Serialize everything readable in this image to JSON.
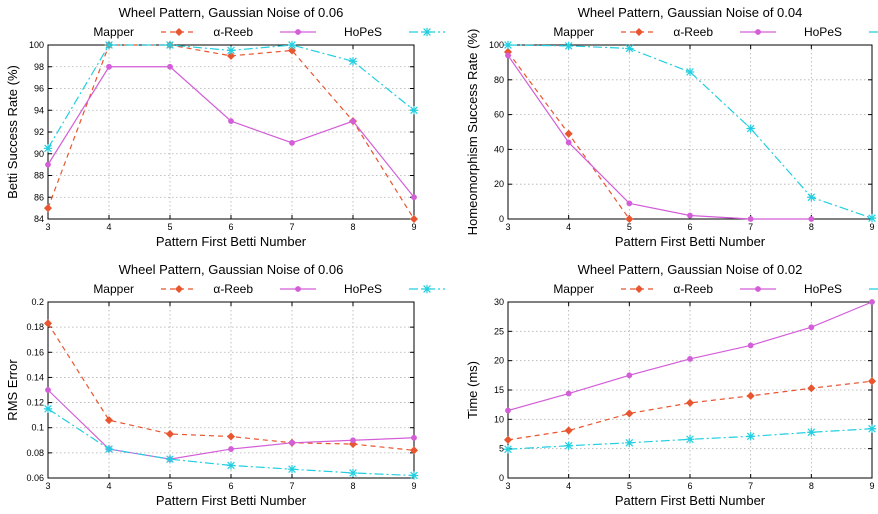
{
  "chart_data": [
    {
      "type": "line",
      "title": "Wheel Pattern, Gaussian Noise of 0.06",
      "xlabel": "Pattern First Betti Number",
      "ylabel": "Betti Success Rate (%)",
      "x": [
        3,
        4,
        5,
        6,
        7,
        8,
        9
      ],
      "xlim": [
        3,
        9
      ],
      "ylim": [
        84,
        100
      ],
      "yticks": [
        84,
        86,
        88,
        90,
        92,
        94,
        96,
        98,
        100
      ],
      "ytick_labels": [
        "84",
        "86",
        "88",
        "90",
        "92",
        "94",
        "96",
        "98",
        "100"
      ],
      "grid": true,
      "legend_position": "top",
      "series": [
        {
          "name": "Mapper",
          "values": [
            85,
            100,
            100,
            99,
            99.5,
            93,
            84
          ]
        },
        {
          "name": "α-Reeb",
          "values": [
            89,
            98,
            98,
            93,
            91,
            93,
            86
          ]
        },
        {
          "name": "HoPeS",
          "values": [
            90.5,
            100,
            100,
            99.5,
            100,
            98.5,
            94
          ]
        }
      ]
    },
    {
      "type": "line",
      "title": "Wheel Pattern, Gaussian Noise of 0.04",
      "xlabel": "Pattern First Betti Number",
      "ylabel": "Homeomorphism Success Rate (%)",
      "x": [
        3,
        4,
        5,
        6,
        7,
        8,
        9
      ],
      "xlim": [
        3,
        9
      ],
      "ylim": [
        0,
        100
      ],
      "yticks": [
        0,
        20,
        40,
        60,
        80,
        100
      ],
      "ytick_labels": [
        "0",
        "20",
        "40",
        "60",
        "80",
        "100"
      ],
      "grid": true,
      "legend_position": "top",
      "series": [
        {
          "name": "Mapper",
          "values": [
            96,
            49,
            0,
            null,
            null,
            null,
            null
          ]
        },
        {
          "name": "α-Reeb",
          "values": [
            94,
            44,
            9,
            2,
            0,
            0,
            null
          ]
        },
        {
          "name": "HoPeS",
          "values": [
            100,
            99.5,
            98,
            84.5,
            52,
            12.5,
            0.5
          ]
        }
      ]
    },
    {
      "type": "line",
      "title": "Wheel Pattern, Gaussian Noise of 0.06",
      "xlabel": "Pattern First Betti Number",
      "ylabel": "RMS Error",
      "x": [
        3,
        4,
        5,
        6,
        7,
        8,
        9
      ],
      "xlim": [
        3,
        9
      ],
      "ylim": [
        0.06,
        0.2
      ],
      "yticks": [
        0.06,
        0.08,
        0.1,
        0.12,
        0.14,
        0.16,
        0.18,
        0.2
      ],
      "ytick_labels": [
        "0.06",
        "0.08",
        "0.1",
        "0.12",
        "0.14",
        "0.16",
        "0.18",
        "0.2"
      ],
      "grid": true,
      "legend_position": "top",
      "series": [
        {
          "name": "Mapper",
          "values": [
            0.183,
            0.106,
            0.095,
            0.093,
            0.088,
            0.087,
            0.082
          ]
        },
        {
          "name": "α-Reeb",
          "values": [
            0.13,
            0.083,
            0.075,
            0.083,
            0.088,
            0.09,
            0.092
          ]
        },
        {
          "name": "HoPeS",
          "values": [
            0.115,
            0.083,
            0.075,
            0.07,
            0.067,
            0.064,
            0.062
          ]
        }
      ]
    },
    {
      "type": "line",
      "title": "Wheel Pattern, Gaussian Noise of 0.02",
      "xlabel": "Pattern First Betti Number",
      "ylabel": "Time (ms)",
      "x": [
        3,
        4,
        5,
        6,
        7,
        8,
        9
      ],
      "xlim": [
        3,
        9
      ],
      "ylim": [
        0,
        30
      ],
      "yticks": [
        0,
        5,
        10,
        15,
        20,
        25,
        30
      ],
      "ytick_labels": [
        "0",
        "5",
        "10",
        "15",
        "20",
        "25",
        "30"
      ],
      "grid": true,
      "legend_position": "top",
      "series": [
        {
          "name": "Mapper",
          "values": [
            6.5,
            8.1,
            11,
            12.8,
            14,
            15.3,
            16.5
          ]
        },
        {
          "name": "α-Reeb",
          "values": [
            11.5,
            14.4,
            17.5,
            20.3,
            22.6,
            25.7,
            30
          ]
        },
        {
          "name": "HoPeS",
          "values": [
            4.9,
            5.5,
            6,
            6.6,
            7.1,
            7.8,
            8.4
          ]
        }
      ]
    }
  ],
  "series_styles": [
    {
      "color": "#e8552f",
      "dash": "5,4",
      "marker": "diamond"
    },
    {
      "color": "#d35ed8",
      "dash": "none",
      "marker": "circle"
    },
    {
      "color": "#22cfe0",
      "dash": "9,3,2,3",
      "marker": "star"
    }
  ]
}
